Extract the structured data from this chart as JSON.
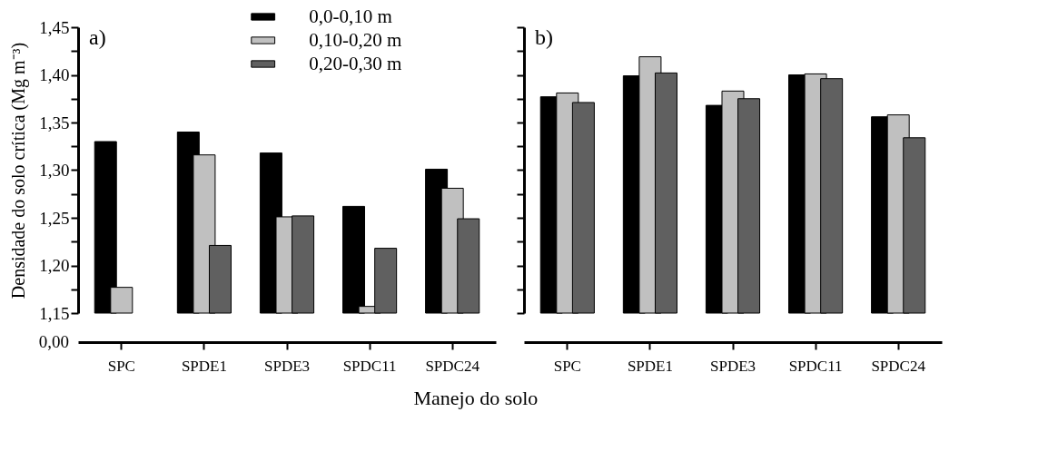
{
  "chart_data": [
    {
      "type": "bar",
      "xlabel": "Manejo do solo",
      "ylabel": "Densidade do solo crítica (Mg m⁻³)",
      "annotations": [
        "a)",
        "0,00"
      ],
      "legend": "top",
      "categories": [
        "SPC",
        "SPDE1",
        "SPDE3",
        "SPDC11",
        "SPDC24"
      ],
      "series": [
        {
          "name": "0,0-0,10 m",
          "color": "#000000",
          "values": [
            1.33,
            1.34,
            1.318,
            1.262,
            1.301
          ]
        },
        {
          "name": "0,10-0,20 m",
          "color": "#c0c0c0",
          "values": [
            1.177,
            1.316,
            1.251,
            1.157,
            1.281
          ]
        },
        {
          "name": "0,20-0,30 m",
          "color": "#606060",
          "values": [
            null,
            1.221,
            1.252,
            1.218,
            1.249
          ]
        }
      ],
      "ylim": [
        1.15,
        1.45
      ],
      "yticks": [
        {
          "value": 1.15,
          "label": "1,15"
        },
        {
          "value": 1.175,
          "label": null
        },
        {
          "value": 1.2,
          "label": "1,20"
        },
        {
          "value": 1.225,
          "label": null
        },
        {
          "value": 1.25,
          "label": "1,25"
        },
        {
          "value": 1.275,
          "label": null
        },
        {
          "value": 1.3,
          "label": "1,30"
        },
        {
          "value": 1.325,
          "label": null
        },
        {
          "value": 1.35,
          "label": "1,35"
        },
        {
          "value": 1.375,
          "label": null
        },
        {
          "value": 1.4,
          "label": "1,40"
        },
        {
          "value": 1.425,
          "label": null
        },
        {
          "value": 1.45,
          "label": "1,45"
        }
      ]
    },
    {
      "type": "bar",
      "annotations": [
        "b)"
      ],
      "tick_labels": "x",
      "categories": [
        "SPC",
        "SPDE1",
        "SPDE3",
        "SPDC11",
        "SPDC24"
      ],
      "series": [
        {
          "color": "#000000",
          "values": [
            1.377,
            1.399,
            1.368,
            1.4,
            1.356
          ]
        },
        {
          "color": "#c0c0c0",
          "values": [
            1.381,
            1.419,
            1.383,
            1.401,
            1.358
          ]
        },
        {
          "color": "#606060",
          "values": [
            1.371,
            1.402,
            1.375,
            1.396,
            1.334
          ]
        }
      ],
      "ylim": [
        1.15,
        1.45
      ],
      "yticks": [
        1.15,
        1.175,
        1.2,
        1.225,
        1.25,
        1.275,
        1.3,
        1.325,
        1.35,
        1.375,
        1.4,
        1.425,
        1.45
      ]
    }
  ]
}
